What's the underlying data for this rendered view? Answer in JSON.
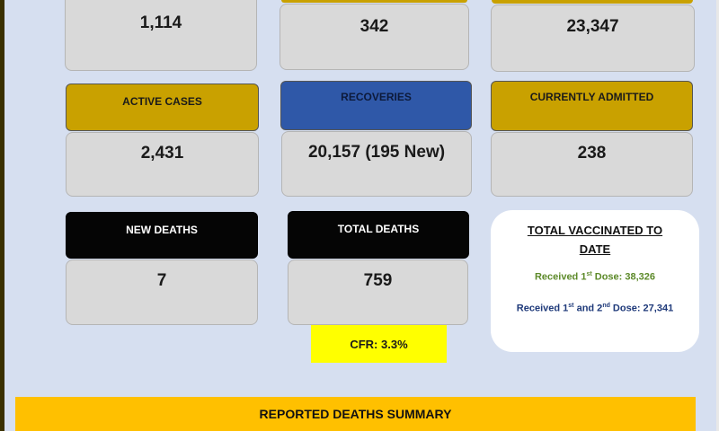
{
  "top_row": {
    "left_value": "1,114",
    "middle_value": "342",
    "right_value": "23,347"
  },
  "cards": {
    "active_cases": {
      "label": "ACTIVE CASES",
      "value": "2,431"
    },
    "recoveries": {
      "label": "RECOVERIES",
      "value": "20,157 (195 New)"
    },
    "currently_admitted": {
      "label": "CURRENTLY ADMITTED",
      "value": "238"
    },
    "new_deaths": {
      "label": "NEW DEATHS",
      "value": "7"
    },
    "total_deaths": {
      "label": "TOTAL DEATHS",
      "value": "759"
    }
  },
  "cfr": "CFR: 3.3%",
  "vaccinated": {
    "title": "TOTAL VACCINATED TO DATE",
    "line1_prefix": "Received 1",
    "line1_sup": "st",
    "line1_suffix": " Dose: 38,326",
    "line2_prefix": "Received 1",
    "line2_sup1": "st",
    "line2_mid": " and 2",
    "line2_sup2": "nd",
    "line2_suffix": " Dose: 27,341"
  },
  "deaths_summary_title": "REPORTED DEATHS SUMMARY",
  "colors": {
    "gold": "#c9a100",
    "blue": "#2f58a8",
    "black": "#050505",
    "yellow": "#ffff00",
    "orange_bar": "#ffc000",
    "background": "#d6dff0"
  }
}
